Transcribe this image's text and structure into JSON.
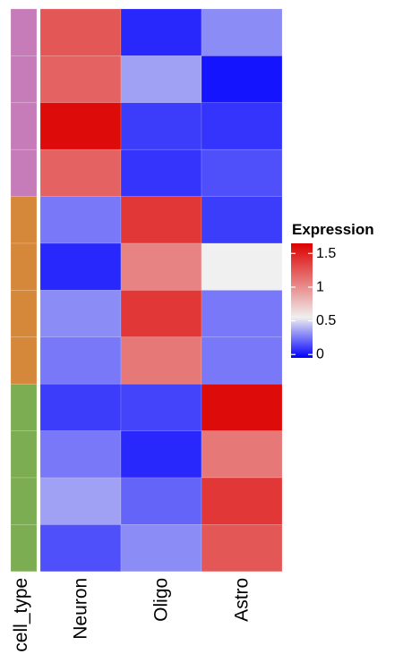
{
  "chart_data": {
    "type": "heatmap",
    "columns": [
      "Neuron",
      "Oligo",
      "Astro"
    ],
    "annotation_label": "cell_type",
    "row_annotation": [
      "Neuron",
      "Neuron",
      "Neuron",
      "Neuron",
      "Oligo",
      "Oligo",
      "Oligo",
      "Oligo",
      "Astro",
      "Astro",
      "Astro",
      "Astro"
    ],
    "annotation_colors": {
      "Neuron": "#c77cba",
      "Oligo": "#d6883a",
      "Astro": "#7dad52"
    },
    "values": [
      [
        1.25,
        0.05,
        0.3
      ],
      [
        1.2,
        0.35,
        0.0
      ],
      [
        1.6,
        0.1,
        0.08
      ],
      [
        1.2,
        0.08,
        0.15
      ],
      [
        0.25,
        1.4,
        0.1
      ],
      [
        0.05,
        1.05,
        0.55
      ],
      [
        0.3,
        1.4,
        0.25
      ],
      [
        0.25,
        1.1,
        0.25
      ],
      [
        0.1,
        0.12,
        1.6
      ],
      [
        0.25,
        0.05,
        1.1
      ],
      [
        0.35,
        0.2,
        1.4
      ],
      [
        0.15,
        0.3,
        1.25
      ]
    ],
    "color_scale": {
      "low": "#0000ff",
      "mid": "#f0f0f0",
      "high": "#dd0000",
      "min": -0.05,
      "mid_value": 0.55,
      "max": 1.65
    },
    "legend": {
      "title": "Expression",
      "ticks": [
        1.5,
        1,
        0.5,
        0
      ],
      "tick_labels": [
        "1.5",
        "1",
        "0.5",
        "0"
      ],
      "position": "right"
    }
  }
}
